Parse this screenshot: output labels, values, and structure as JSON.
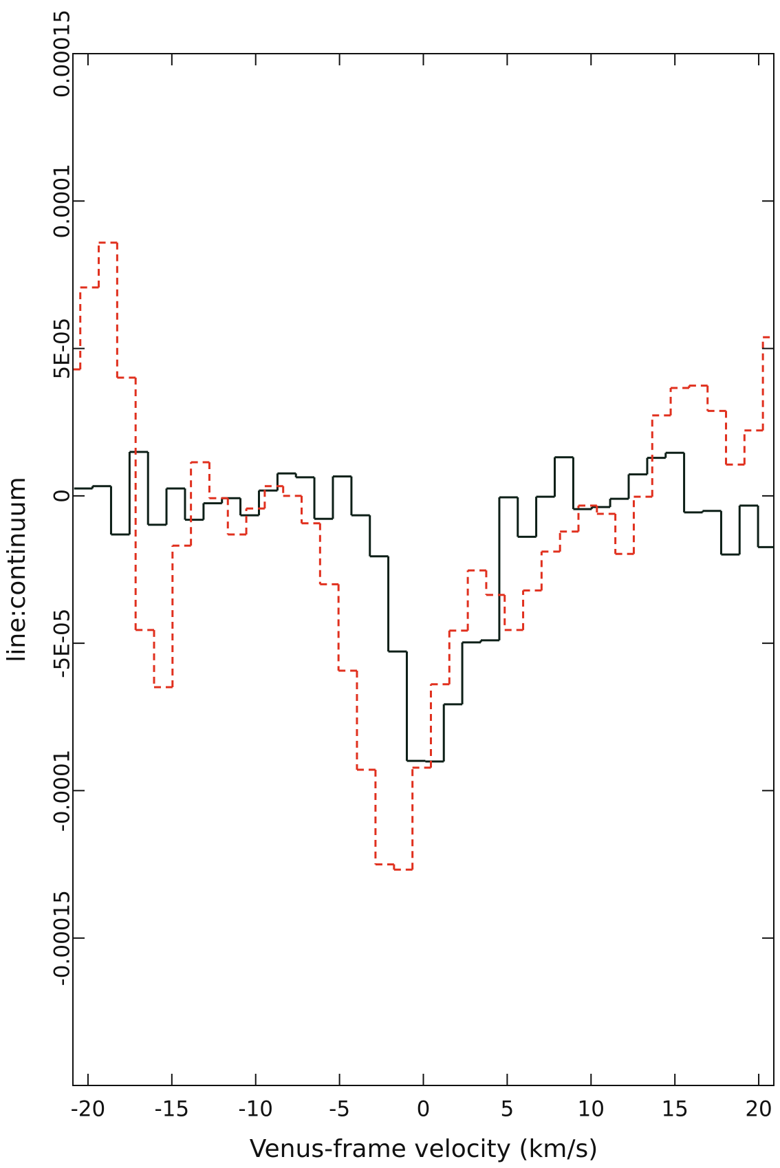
{
  "chart_data": {
    "type": "step",
    "x_label": "Venus-frame velocity (km/s)",
    "y_label": "line:continuum",
    "xlim": [
      -20.9,
      20.9
    ],
    "ylim": [
      -0.0002,
      0.00015
    ],
    "xticks": [
      -20,
      -15,
      -10,
      -5,
      0,
      5,
      10,
      15,
      20
    ],
    "yticks": [
      -0.00015,
      -0.0001,
      {
        "value": -5e-05,
        "label": "-5E-05"
      },
      0,
      {
        "value": 5e-05,
        "label": "5E-05"
      },
      0.0001,
      0.00015
    ],
    "series": [
      {
        "color": "#0d1f17",
        "dashed": false,
        "x": [
          -20.28,
          -19.18,
          -18.07,
          -16.97,
          -15.87,
          -14.77,
          -13.66,
          -12.56,
          -11.46,
          -10.36,
          -9.25,
          -8.15,
          -7.05,
          -5.95,
          -4.84,
          -3.74,
          -2.64,
          -1.54,
          -0.43,
          0.67,
          1.77,
          2.87,
          3.98,
          5.08,
          6.18,
          7.28,
          8.39,
          9.49,
          10.59,
          11.69,
          12.8,
          13.9,
          15.0,
          16.1,
          17.21,
          18.31,
          19.41,
          20.51
        ],
        "values": [
          2.5e-06,
          3.3e-06,
          -1.31e-05,
          1.49e-05,
          -9.8e-06,
          2.5e-06,
          -8.1e-06,
          -2.5e-06,
          -8e-07,
          -6.6e-06,
          1.8e-06,
          7.6e-06,
          6.3e-06,
          -7.8e-06,
          6.6e-06,
          -6.6e-06,
          -2.05e-05,
          -5.28e-05,
          -8.99e-05,
          -9.01e-05,
          -7.07e-05,
          -4.97e-05,
          -4.9e-05,
          -5e-07,
          -1.39e-05,
          -3e-07,
          1.31e-05,
          -4.5e-06,
          -3.8e-06,
          -1e-06,
          7.3e-06,
          1.29e-05,
          1.46e-05,
          -5.6e-06,
          -5.1e-06,
          -1.99e-05,
          -3.3e-06,
          -1.74e-05
        ]
      },
      {
        "color": "#e0301e",
        "dashed": true,
        "x": [
          -21.01,
          -19.91,
          -18.81,
          -17.71,
          -16.61,
          -15.51,
          -14.41,
          -13.31,
          -12.21,
          -11.11,
          -10.01,
          -8.91,
          -7.81,
          -6.71,
          -5.61,
          -4.51,
          -3.41,
          -2.3,
          -1.2,
          -0.1,
          1.0,
          2.1,
          3.2,
          4.3,
          5.4,
          6.5,
          7.6,
          8.7,
          9.8,
          10.9,
          12.0,
          13.1,
          14.2,
          15.3,
          16.4,
          17.5,
          18.6,
          19.7,
          20.8
        ],
        "values": [
          4.29e-05,
          7.07e-05,
          8.59e-05,
          4.01e-05,
          -4.55e-05,
          -6.49e-05,
          -1.69e-05,
          1.14e-05,
          -8e-07,
          -1.31e-05,
          -4.3e-06,
          3.3e-06,
          0,
          -9.3e-06,
          -3e-05,
          -5.93e-05,
          -9.29e-05,
          -0.000125,
          -0.0001268,
          -9.22e-05,
          -6.39e-05,
          -4.57e-05,
          -2.53e-05,
          -3.36e-05,
          -4.55e-05,
          -3.21e-05,
          -1.89e-05,
          -1.21e-05,
          -3.3e-06,
          -6.1e-06,
          -1.97e-05,
          -3e-07,
          2.73e-05,
          3.66e-05,
          3.74e-05,
          2.88e-05,
          1.06e-05,
          2.22e-05,
          5.38e-05
        ]
      }
    ]
  }
}
